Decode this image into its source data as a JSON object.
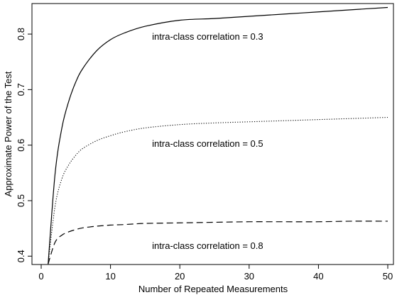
{
  "chart_data": {
    "type": "line",
    "xlabel": "Number of Repeated Measurements",
    "ylabel": "Approximate Power of the Test",
    "xlim": [
      0,
      50
    ],
    "ylim": [
      0.385,
      0.855
    ],
    "x_ticks": [
      0,
      10,
      20,
      30,
      40,
      50
    ],
    "x_tick_labels": [
      "0",
      "10",
      "20",
      "30",
      "40",
      "50"
    ],
    "y_ticks": [
      0.4,
      0.5,
      0.6,
      0.7,
      0.8
    ],
    "y_tick_labels": [
      "0.4",
      "0.5",
      "0.6",
      "0.7",
      "0.8"
    ],
    "grid": false,
    "legend": "none",
    "series": [
      {
        "style": "solid",
        "x": [
          1,
          2,
          3,
          4,
          5,
          6,
          8,
          10,
          12,
          15,
          20,
          25,
          30,
          35,
          40,
          45,
          50
        ],
        "y": [
          0.386,
          0.548,
          0.632,
          0.68,
          0.714,
          0.738,
          0.77,
          0.79,
          0.802,
          0.814,
          0.825,
          0.828,
          0.832,
          0.836,
          0.84,
          0.844,
          0.848
        ]
      },
      {
        "style": "dotted",
        "x": [
          1,
          2,
          3,
          4,
          5,
          6,
          8,
          10,
          12,
          15,
          20,
          25,
          30,
          35,
          40,
          45,
          50
        ],
        "y": [
          0.386,
          0.49,
          0.54,
          0.565,
          0.582,
          0.594,
          0.608,
          0.617,
          0.624,
          0.631,
          0.637,
          0.64,
          0.642,
          0.644,
          0.646,
          0.648,
          0.65
        ]
      },
      {
        "style": "dashed",
        "x": [
          1,
          2,
          3,
          4,
          5,
          6,
          8,
          10,
          12,
          15,
          20,
          25,
          30,
          35,
          40,
          45,
          50
        ],
        "y": [
          0.386,
          0.425,
          0.438,
          0.444,
          0.448,
          0.451,
          0.454,
          0.456,
          0.457,
          0.459,
          0.46,
          0.461,
          0.462,
          0.462,
          0.462,
          0.463,
          0.463
        ]
      }
    ],
    "annotations": [
      {
        "text": "intra-class correlation = 0.3",
        "x": 16,
        "y": 0.79
      },
      {
        "text": "intra-class correlation = 0.5",
        "x": 16,
        "y": 0.597
      },
      {
        "text": "intra-class correlation = 0.8",
        "x": 16,
        "y": 0.413
      }
    ]
  }
}
